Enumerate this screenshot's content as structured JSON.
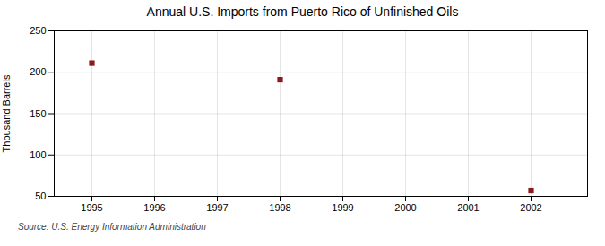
{
  "chart_data": {
    "type": "scatter",
    "title": "Annual U.S. Imports from Puerto Rico of Unfinished Oils",
    "ylabel": "Thousand Barrels",
    "annotation": "Source: U.S. Energy Information Administration",
    "x": [
      1995,
      1998,
      2002
    ],
    "values": [
      211,
      191,
      57
    ],
    "color": "#8b1a1a",
    "marker": "square",
    "xlim": [
      1994.4,
      2002.9
    ],
    "ylim": [
      50,
      250
    ],
    "xticks": [
      1995,
      1996,
      1997,
      1998,
      1999,
      2000,
      2001,
      2002
    ],
    "yticks": [
      50,
      100,
      150,
      200,
      250
    ],
    "grid": true
  }
}
